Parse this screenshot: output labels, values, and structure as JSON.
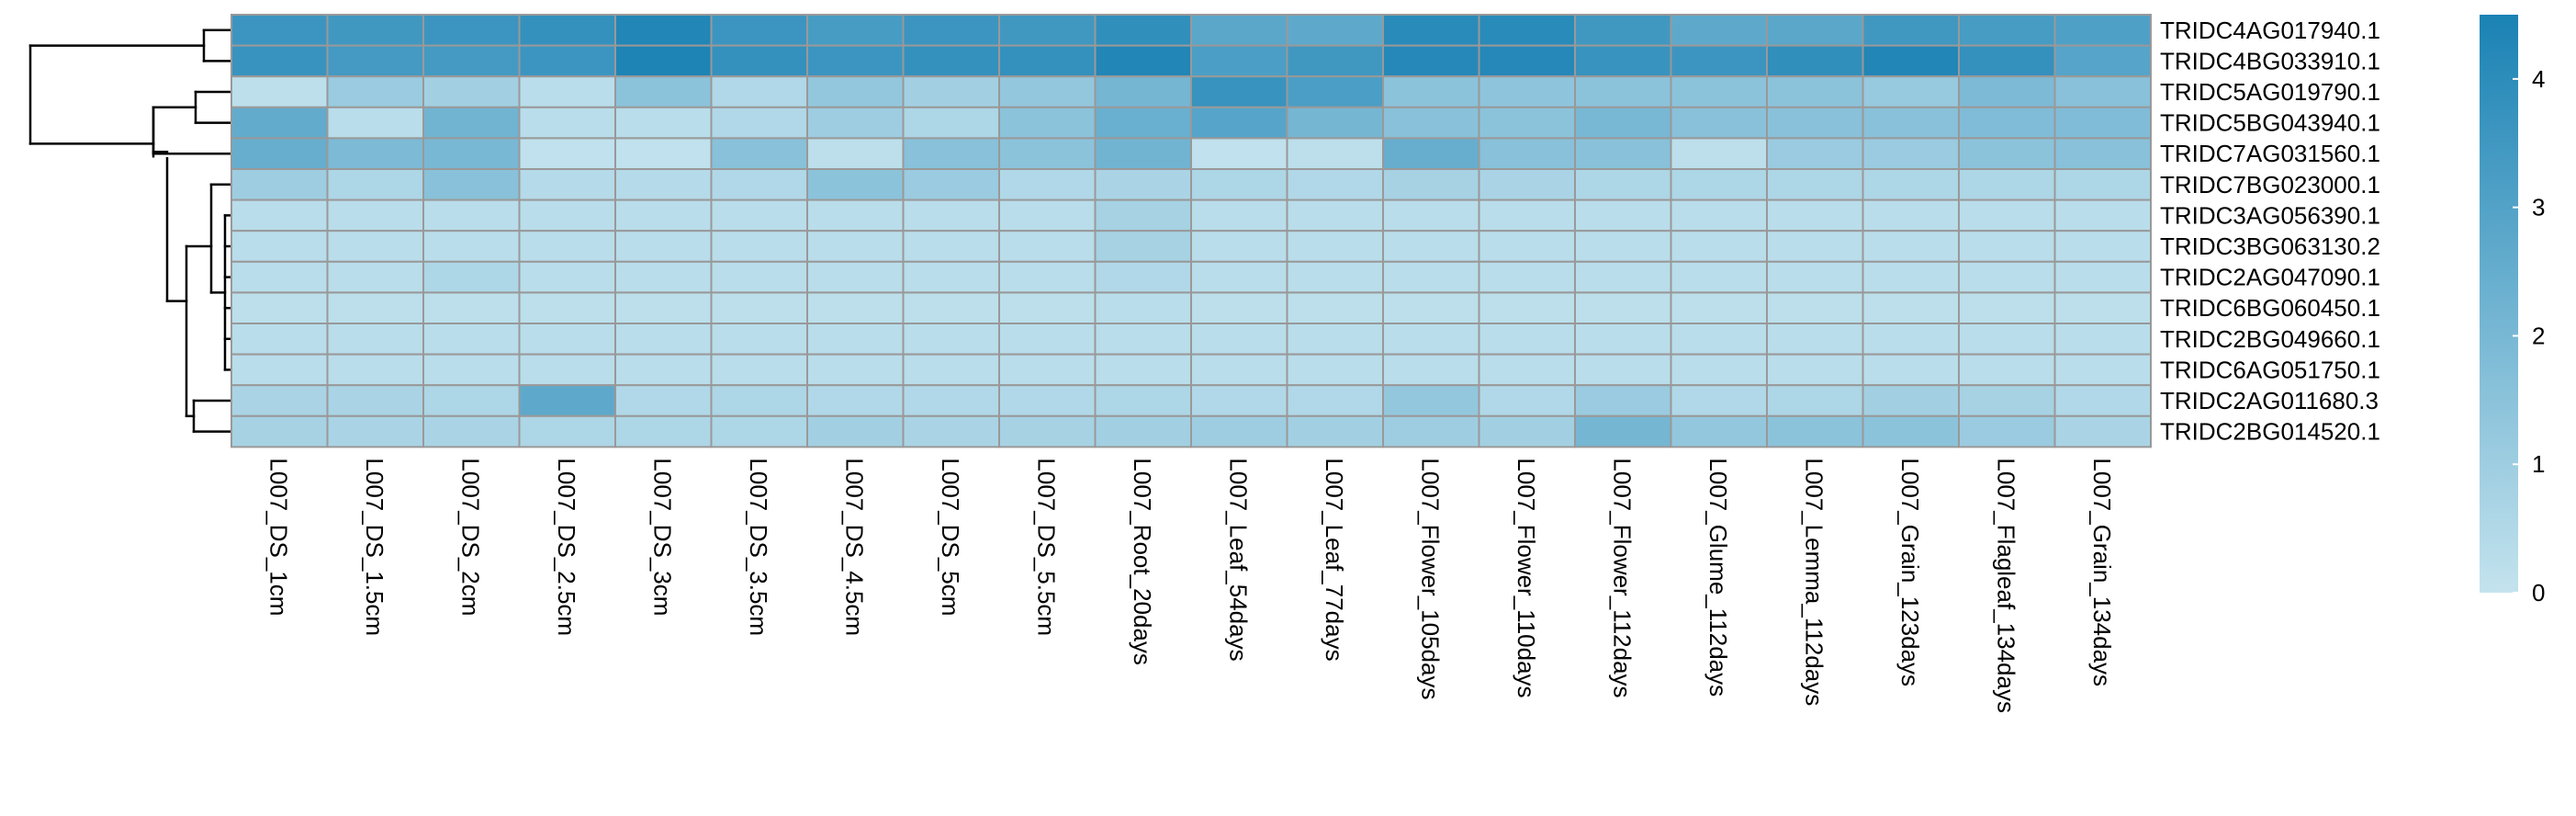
{
  "chart_data": {
    "type": "heatmap",
    "title": "",
    "xlabel": "",
    "ylabel": "",
    "columns": [
      "L007_DS_1cm",
      "L007_DS_1.5cm",
      "L007_DS_2cm",
      "L007_DS_2.5cm",
      "L007_DS_3cm",
      "L007_DS_3.5cm",
      "L007_DS_4.5cm",
      "L007_DS_5cm",
      "L007_DS_5.5cm",
      "L007_Root_20days",
      "L007_Leaf_54days",
      "L007_Leaf_77days",
      "L007_Flower_105days",
      "L007_Flower_110days",
      "L007_Flower_112days",
      "L007_Glume_112days",
      "L007_Lemma_112days",
      "L007_Grain_123days",
      "L007_Flagleaf_134days",
      "L007_Grain_134days"
    ],
    "rows": [
      "TRIDC4AG017940.1",
      "TRIDC4BG033910.1",
      "TRIDC5AG019790.1",
      "TRIDC5BG043940.1",
      "TRIDC7AG031560.1",
      "TRIDC7BG023000.1",
      "TRIDC3AG056390.1",
      "TRIDC3BG063130.2",
      "TRIDC2AG047090.1",
      "TRIDC6BG060450.1",
      "TRIDC2BG049660.1",
      "TRIDC6AG051750.1",
      "TRIDC2AG011680.3",
      "TRIDC2BG014520.1"
    ],
    "values": [
      [
        3.6,
        3.5,
        3.6,
        3.8,
        4.3,
        3.6,
        3.3,
        3.6,
        3.5,
        3.9,
        2.8,
        2.7,
        4.1,
        4.1,
        3.5,
        2.7,
        2.8,
        3.5,
        3.3,
        3.1
      ],
      [
        3.7,
        3.4,
        3.4,
        3.6,
        4.4,
        3.8,
        3.6,
        3.8,
        3.8,
        4.3,
        3.2,
        3.5,
        4.2,
        4.2,
        3.7,
        3.6,
        3.9,
        4.3,
        3.8,
        2.9
      ],
      [
        0.2,
        1.1,
        0.9,
        0.3,
        1.5,
        0.5,
        1.3,
        0.9,
        1.3,
        2.1,
        3.7,
        3.2,
        1.5,
        1.4,
        1.5,
        1.5,
        1.5,
        1.2,
        1.9,
        1.6
      ],
      [
        2.6,
        0.3,
        2.2,
        0.3,
        0.3,
        0.5,
        1.0,
        0.6,
        1.5,
        2.4,
        2.9,
        2.1,
        1.6,
        1.5,
        2.0,
        1.6,
        1.6,
        1.6,
        1.8,
        1.8
      ],
      [
        2.5,
        1.9,
        2.0,
        0.1,
        0.1,
        1.6,
        0.2,
        1.6,
        1.5,
        2.2,
        0.1,
        0.2,
        2.5,
        1.6,
        1.6,
        0.2,
        1.1,
        1.1,
        1.5,
        1.6
      ],
      [
        1.0,
        0.6,
        1.6,
        0.4,
        0.4,
        0.5,
        1.5,
        1.1,
        0.5,
        0.7,
        0.6,
        0.5,
        0.8,
        0.7,
        0.6,
        0.6,
        0.6,
        0.6,
        0.6,
        0.6
      ],
      [
        0.3,
        0.3,
        0.3,
        0.3,
        0.3,
        0.3,
        0.3,
        0.3,
        0.3,
        0.8,
        0.3,
        0.3,
        0.3,
        0.3,
        0.3,
        0.3,
        0.3,
        0.3,
        0.3,
        0.3
      ],
      [
        0.3,
        0.3,
        0.3,
        0.3,
        0.3,
        0.3,
        0.3,
        0.3,
        0.3,
        0.8,
        0.3,
        0.3,
        0.3,
        0.3,
        0.3,
        0.3,
        0.3,
        0.3,
        0.3,
        0.3
      ],
      [
        0.3,
        0.3,
        0.6,
        0.3,
        0.3,
        0.3,
        0.3,
        0.3,
        0.3,
        0.5,
        0.3,
        0.3,
        0.3,
        0.3,
        0.3,
        0.3,
        0.3,
        0.3,
        0.3,
        0.3
      ],
      [
        0.2,
        0.2,
        0.2,
        0.2,
        0.2,
        0.2,
        0.2,
        0.2,
        0.2,
        0.3,
        0.2,
        0.2,
        0.2,
        0.2,
        0.2,
        0.2,
        0.2,
        0.2,
        0.2,
        0.2
      ],
      [
        0.3,
        0.3,
        0.3,
        0.3,
        0.3,
        0.3,
        0.3,
        0.3,
        0.3,
        0.3,
        0.3,
        0.3,
        0.3,
        0.3,
        0.3,
        0.3,
        0.3,
        0.3,
        0.3,
        0.3
      ],
      [
        0.3,
        0.3,
        0.3,
        0.3,
        0.3,
        0.3,
        0.3,
        0.3,
        0.3,
        0.3,
        0.3,
        0.3,
        0.3,
        0.3,
        0.3,
        0.3,
        0.3,
        0.3,
        0.3,
        0.3
      ],
      [
        0.7,
        0.7,
        0.6,
        2.7,
        0.5,
        0.6,
        0.5,
        0.5,
        0.5,
        0.6,
        0.5,
        0.5,
        1.3,
        0.5,
        1.1,
        0.5,
        0.6,
        0.9,
        0.8,
        0.5
      ],
      [
        0.8,
        0.7,
        0.7,
        0.6,
        0.6,
        0.6,
        0.9,
        0.7,
        0.8,
        0.9,
        1.0,
        0.9,
        1.0,
        0.9,
        2.1,
        1.3,
        1.5,
        1.5,
        1.1,
        0.7
      ]
    ],
    "color_scale": {
      "min": 0,
      "max": 4.5,
      "low_color": "#C4E3EE",
      "high_color": "#1A82B4"
    },
    "legend": {
      "ticks": [
        0,
        1,
        2,
        3,
        4
      ],
      "position": "right"
    },
    "grid": true,
    "cell_border_color": "#999999",
    "dendrogram": "left"
  }
}
